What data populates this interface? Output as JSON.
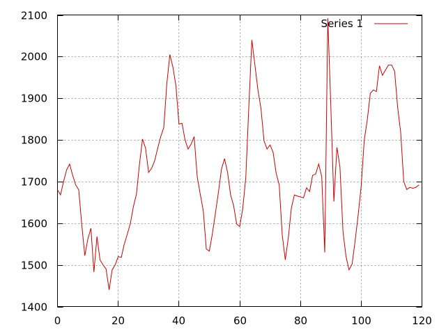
{
  "chart_data": {
    "type": "line",
    "title": "",
    "xlabel": "",
    "ylabel": "",
    "xlim": [
      0,
      120
    ],
    "ylim": [
      1400,
      2100
    ],
    "x_ticks": [
      0,
      20,
      40,
      60,
      80,
      100,
      120
    ],
    "y_ticks": [
      1400,
      1500,
      1600,
      1700,
      1800,
      1900,
      2000,
      2100
    ],
    "x_tick_labels": [
      "0",
      "20",
      "40",
      "60",
      "80",
      "100",
      "120"
    ],
    "y_tick_labels": [
      "1400",
      "1500",
      "1600",
      "1700",
      "1800",
      "1900",
      "2000",
      "2100"
    ],
    "grid": true,
    "legend_position": "top-right",
    "series": [
      {
        "name": "Series 1",
        "color": "#cc0000",
        "x": [
          0,
          1,
          2,
          3,
          4,
          5,
          6,
          7,
          8,
          9,
          10,
          11,
          12,
          13,
          14,
          15,
          16,
          17,
          18,
          19,
          20,
          21,
          22,
          23,
          24,
          25,
          26,
          27,
          28,
          29,
          30,
          31,
          32,
          33,
          34,
          35,
          36,
          37,
          38,
          39,
          40,
          41,
          42,
          43,
          44,
          45,
          46,
          47,
          48,
          49,
          50,
          51,
          52,
          53,
          54,
          55,
          56,
          57,
          58,
          59,
          60,
          61,
          62,
          63,
          64,
          65,
          66,
          67,
          68,
          69,
          70,
          71,
          72,
          73,
          74,
          75,
          76,
          77,
          78,
          79,
          80,
          81,
          82,
          83,
          84,
          85,
          86,
          87,
          88,
          89,
          90,
          91,
          92,
          93,
          94,
          95,
          96,
          97,
          98,
          99,
          100,
          101,
          102,
          103,
          104,
          105,
          106,
          107,
          108,
          109,
          110,
          111,
          112,
          113,
          114,
          115,
          116,
          117,
          118,
          119
        ],
        "values": [
          1680,
          1668,
          1700,
          1728,
          1742,
          1715,
          1692,
          1680,
          1596,
          1522,
          1562,
          1588,
          1483,
          1568,
          1512,
          1500,
          1490,
          1440,
          1488,
          1500,
          1520,
          1518,
          1550,
          1574,
          1600,
          1640,
          1670,
          1742,
          1802,
          1780,
          1722,
          1732,
          1750,
          1780,
          1808,
          1830,
          1935,
          2005,
          1975,
          1930,
          1838,
          1840,
          1800,
          1778,
          1790,
          1808,
          1712,
          1670,
          1630,
          1538,
          1533,
          1575,
          1624,
          1675,
          1730,
          1755,
          1722,
          1668,
          1642,
          1598,
          1592,
          1635,
          1710,
          1880,
          2040,
          1980,
          1920,
          1875,
          1798,
          1778,
          1788,
          1770,
          1720,
          1692,
          1572,
          1512,
          1565,
          1636,
          1668,
          1665,
          1663,
          1661,
          1685,
          1676,
          1715,
          1718,
          1742,
          1712,
          1530,
          2092,
          1880,
          1652,
          1782,
          1735,
          1580,
          1520,
          1488,
          1502,
          1558,
          1620,
          1690,
          1800,
          1848,
          1912,
          1920,
          1916,
          1978,
          1955,
          1968,
          1980,
          1980,
          1965,
          1878,
          1818,
          1700,
          1681,
          1686,
          1684,
          1686,
          1692
        ]
      }
    ]
  }
}
